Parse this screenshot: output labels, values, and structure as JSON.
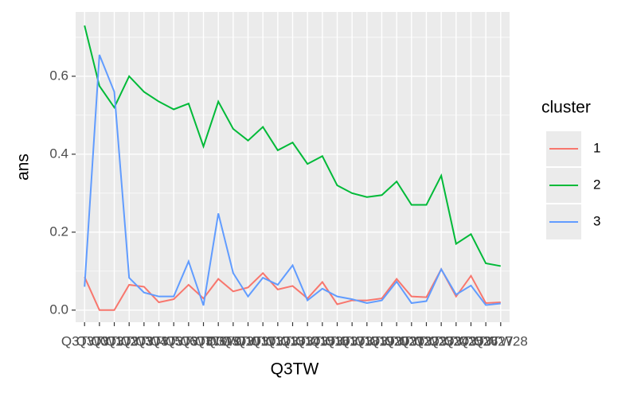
{
  "chart_data": {
    "type": "line",
    "x_label": "Q3TW",
    "y_label": "ans",
    "legend_title": "cluster",
    "legend_position": "right",
    "categories": [
      "Q3TW0",
      "Q3TW1",
      "Q3TW2",
      "Q3TW3",
      "Q3TW4",
      "Q3TW5",
      "Q3TW6",
      "Q3TW7",
      "Q3TW8",
      "Q3TW9",
      "Q3TW10",
      "Q3TW11",
      "Q3TW12",
      "Q3TW13",
      "Q3TW14",
      "Q3TW15",
      "Q3TW16",
      "Q3TW17",
      "Q3TW18",
      "Q3TW19",
      "Q3TW20",
      "Q3TW21",
      "Q3TW22",
      "Q3TW23",
      "Q3TW24",
      "Q3TW25",
      "Q3TW26",
      "Q3TW27",
      "Q3TW28"
    ],
    "series": [
      {
        "name": "1",
        "color": "#f8766d",
        "values": [
          0.085,
          0,
          0,
          0.065,
          0.06,
          0.02,
          0.028,
          0.065,
          0.03,
          0.08,
          0.048,
          0.058,
          0.095,
          0.053,
          0.062,
          0.03,
          0.072,
          0.015,
          0.025,
          0.025,
          0.03,
          0.08,
          0.035,
          0.033,
          0.105,
          0.035,
          0.088,
          0.018,
          0.02
        ]
      },
      {
        "name": "2",
        "color": "#00ba38",
        "values": [
          0.73,
          0.575,
          0.52,
          0.6,
          0.56,
          0.535,
          0.515,
          0.53,
          0.42,
          0.535,
          0.465,
          0.435,
          0.47,
          0.41,
          0.43,
          0.375,
          0.395,
          0.32,
          0.3,
          0.29,
          0.295,
          0.33,
          0.27,
          0.27,
          0.345,
          0.17,
          0.195,
          0.12,
          0.113
        ]
      },
      {
        "name": "3",
        "color": "#619cff",
        "values": [
          0.06,
          0.655,
          0.56,
          0.083,
          0.045,
          0.035,
          0.035,
          0.125,
          0.012,
          0.248,
          0.095,
          0.035,
          0.083,
          0.065,
          0.115,
          0.025,
          0.055,
          0.035,
          0.028,
          0.018,
          0.025,
          0.073,
          0.018,
          0.023,
          0.105,
          0.04,
          0.063,
          0.013,
          0.017
        ]
      }
    ],
    "ylim": [
      -0.031,
      0.765
    ],
    "yticks": [
      {
        "value": 0,
        "label": "0.0"
      },
      0.2,
      0.4,
      0.6
    ],
    "grid": true
  }
}
